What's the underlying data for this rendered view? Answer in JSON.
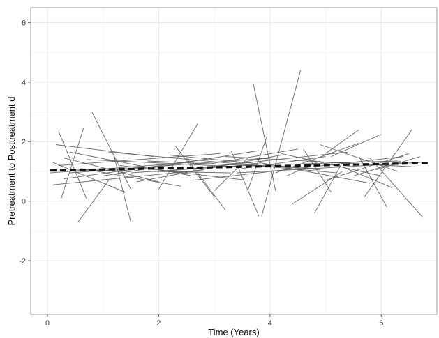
{
  "chart_data": {
    "type": "line",
    "title": "",
    "xlabel": "Time (Years)",
    "ylabel": "Pretreatment to Posttreatment d",
    "xlim": [
      -0.3,
      7.0
    ],
    "ylim": [
      -3.8,
      6.5
    ],
    "xticks": [
      0,
      2,
      4,
      6
    ],
    "xtick_labels": [
      "0",
      "2",
      "4",
      "6"
    ],
    "yticks": [
      -2,
      0,
      2,
      4,
      6
    ],
    "ytick_labels": [
      "-2",
      "0",
      "2",
      "4",
      "6"
    ],
    "grid": true,
    "legend": "none",
    "colors": {
      "lines": "#555555",
      "mean": "#111111",
      "grid": "#e8e8e8",
      "frame": "#9a9a9a"
    },
    "series": [
      {
        "x": [
          0.1,
          1.4
        ],
        "y": [
          1.3,
          0.3
        ]
      },
      {
        "x": [
          0.2,
          0.7
        ],
        "y": [
          2.35,
          0.1
        ]
      },
      {
        "x": [
          0.25,
          0.65
        ],
        "y": [
          0.1,
          2.45
        ]
      },
      {
        "x": [
          0.55,
          1.1
        ],
        "y": [
          -0.7,
          0.7
        ]
      },
      {
        "x": [
          0.8,
          1.5
        ],
        "y": [
          3.0,
          0.4
        ]
      },
      {
        "x": [
          1.2,
          1.5
        ],
        "y": [
          1.5,
          -0.7
        ]
      },
      {
        "x": [
          0.15,
          1.9
        ],
        "y": [
          1.9,
          1.5
        ]
      },
      {
        "x": [
          0.3,
          2.0
        ],
        "y": [
          1.45,
          0.65
        ]
      },
      {
        "x": [
          0.05,
          2.2
        ],
        "y": [
          0.95,
          1.25
        ]
      },
      {
        "x": [
          0.1,
          2.8
        ],
        "y": [
          0.55,
          1.05
        ]
      },
      {
        "x": [
          0.2,
          3.1
        ],
        "y": [
          1.2,
          1.6
        ]
      },
      {
        "x": [
          0.3,
          3.0
        ],
        "y": [
          0.75,
          1.45
        ]
      },
      {
        "x": [
          0.4,
          2.6
        ],
        "y": [
          1.65,
          0.85
        ]
      },
      {
        "x": [
          0.5,
          3.3
        ],
        "y": [
          1.05,
          0.95
        ]
      },
      {
        "x": [
          0.7,
          3.5
        ],
        "y": [
          1.4,
          1.15
        ]
      },
      {
        "x": [
          1.0,
          3.8
        ],
        "y": [
          0.85,
          1.7
        ]
      },
      {
        "x": [
          1.3,
          3.6
        ],
        "y": [
          1.2,
          0.7
        ]
      },
      {
        "x": [
          1.6,
          4.2
        ],
        "y": [
          0.65,
          1.55
        ]
      },
      {
        "x": [
          2.0,
          2.7
        ],
        "y": [
          0.4,
          2.6
        ]
      },
      {
        "x": [
          2.3,
          3.0
        ],
        "y": [
          1.85,
          0.15
        ]
      },
      {
        "x": [
          2.5,
          3.2
        ],
        "y": [
          1.45,
          -0.3
        ]
      },
      {
        "x": [
          2.9,
          4.5
        ],
        "y": [
          1.25,
          1.75
        ]
      },
      {
        "x": [
          3.0,
          3.6
        ],
        "y": [
          0.35,
          1.45
        ]
      },
      {
        "x": [
          3.3,
          3.8
        ],
        "y": [
          1.7,
          -0.5
        ]
      },
      {
        "x": [
          3.6,
          3.95
        ],
        "y": [
          0.35,
          2.2
        ]
      },
      {
        "x": [
          3.7,
          4.1
        ],
        "y": [
          3.95,
          0.35
        ]
      },
      {
        "x": [
          3.85,
          4.55
        ],
        "y": [
          -0.5,
          4.4
        ]
      },
      {
        "x": [
          3.5,
          5.0
        ],
        "y": [
          1.1,
          1.5
        ]
      },
      {
        "x": [
          3.8,
          5.8
        ],
        "y": [
          1.3,
          0.6
        ]
      },
      {
        "x": [
          4.1,
          5.6
        ],
        "y": [
          0.95,
          1.95
        ]
      },
      {
        "x": [
          4.2,
          6.0
        ],
        "y": [
          1.6,
          0.85
        ]
      },
      {
        "x": [
          4.3,
          4.9
        ],
        "y": [
          0.85,
          1.35
        ]
      },
      {
        "x": [
          4.4,
          5.3
        ],
        "y": [
          -0.1,
          1.0
        ]
      },
      {
        "x": [
          4.6,
          5.1
        ],
        "y": [
          1.75,
          0.3
        ]
      },
      {
        "x": [
          4.8,
          5.3
        ],
        "y": [
          -0.4,
          1.3
        ]
      },
      {
        "x": [
          4.9,
          6.3
        ],
        "y": [
          1.9,
          1.0
        ]
      },
      {
        "x": [
          5.0,
          6.5
        ],
        "y": [
          0.7,
          1.6
        ]
      },
      {
        "x": [
          5.1,
          6.0
        ],
        "y": [
          1.5,
          2.25
        ]
      },
      {
        "x": [
          5.3,
          6.2
        ],
        "y": [
          1.15,
          0.45
        ]
      },
      {
        "x": [
          5.5,
          6.35
        ],
        "y": [
          0.85,
          1.35
        ]
      },
      {
        "x": [
          5.6,
          6.1
        ],
        "y": [
          1.5,
          -0.2
        ]
      },
      {
        "x": [
          5.7,
          6.55
        ],
        "y": [
          0.15,
          2.4
        ]
      },
      {
        "x": [
          5.8,
          6.75
        ],
        "y": [
          1.45,
          -0.55
        ]
      },
      {
        "x": [
          5.9,
          6.7
        ],
        "y": [
          1.05,
          1.5
        ]
      },
      {
        "x": [
          4.5,
          6.3
        ],
        "y": [
          1.25,
          1.35
        ]
      },
      {
        "x": [
          5.0,
          5.6
        ],
        "y": [
          1.6,
          2.4
        ]
      },
      {
        "x": [
          2.1,
          5.4
        ],
        "y": [
          1.0,
          1.65
        ]
      },
      {
        "x": [
          1.8,
          4.8
        ],
        "y": [
          1.35,
          1.1
        ]
      },
      {
        "x": [
          0.4,
          4.0
        ],
        "y": [
          0.95,
          1.45
        ]
      },
      {
        "x": [
          2.6,
          6.4
        ],
        "y": [
          0.7,
          1.5
        ]
      },
      {
        "x": [
          3.2,
          6.6
        ],
        "y": [
          1.5,
          1.15
        ]
      },
      {
        "x": [
          1.1,
          5.2
        ],
        "y": [
          1.65,
          0.95
        ]
      },
      {
        "x": [
          0.6,
          2.4
        ],
        "y": [
          1.1,
          0.5
        ]
      },
      {
        "x": [
          3.4,
          6.7
        ],
        "y": [
          0.95,
          1.3
        ]
      },
      {
        "x": [
          1.5,
          3.9
        ],
        "y": [
          0.95,
          1.25
        ]
      },
      {
        "x": [
          2.2,
          4.9
        ],
        "y": [
          1.55,
          1.05
        ]
      }
    ],
    "mean_line": {
      "x": [
        0.05,
        6.85
      ],
      "y": [
        1.03,
        1.28
      ]
    }
  }
}
